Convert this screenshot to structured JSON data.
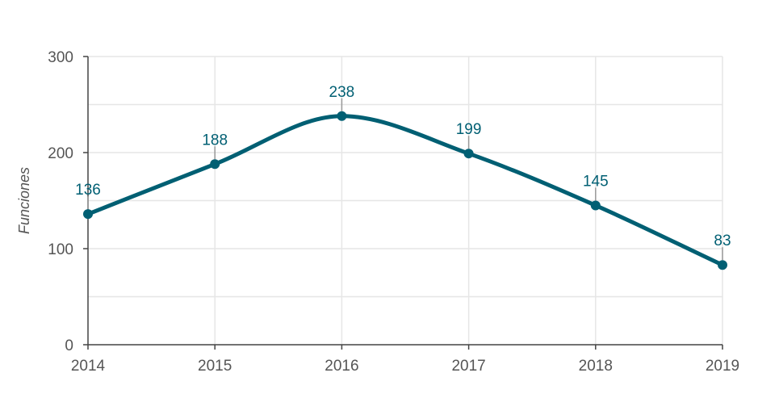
{
  "chart_data": {
    "type": "line",
    "title": "",
    "xlabel": "",
    "ylabel": "Funciones",
    "categories": [
      "2014",
      "2015",
      "2016",
      "2017",
      "2018",
      "2019"
    ],
    "series": [
      {
        "values": [
          136,
          188,
          238,
          199,
          145,
          83
        ],
        "labels": [
          "136",
          "188",
          "238",
          "199",
          "145",
          "83"
        ],
        "color": "#005f73"
      }
    ],
    "ylim": [
      0,
      300
    ],
    "yticks": [
      "0",
      "100",
      "200",
      "300"
    ],
    "grid": true,
    "line_smooth": true
  }
}
